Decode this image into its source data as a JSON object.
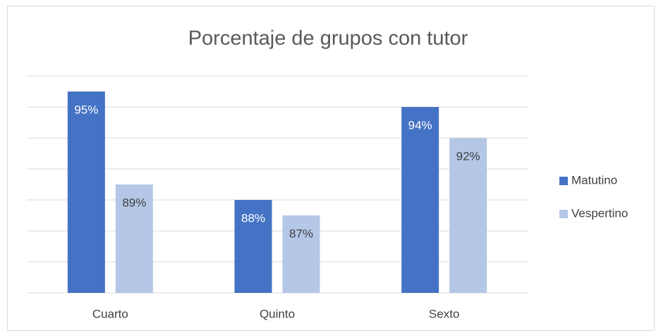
{
  "chart_data": {
    "type": "bar",
    "title": "Porcentaje de grupos con tutor",
    "categories": [
      "Cuarto",
      "Quinto",
      "Sexto"
    ],
    "series": [
      {
        "name": "Matutino",
        "color": "#4472c4",
        "values": [
          95,
          88,
          94
        ],
        "value_labels": [
          "95%",
          "88%",
          "94%"
        ]
      },
      {
        "name": "Vespertino",
        "color": "#b4c7e7",
        "values": [
          89,
          87,
          92
        ],
        "value_labels": [
          "89%",
          "87%",
          "92%"
        ]
      }
    ],
    "ylim": [
      82,
      96
    ],
    "yticks": [
      82,
      84,
      86,
      88,
      90,
      92,
      94,
      96
    ],
    "grid": true,
    "legend": "right"
  }
}
